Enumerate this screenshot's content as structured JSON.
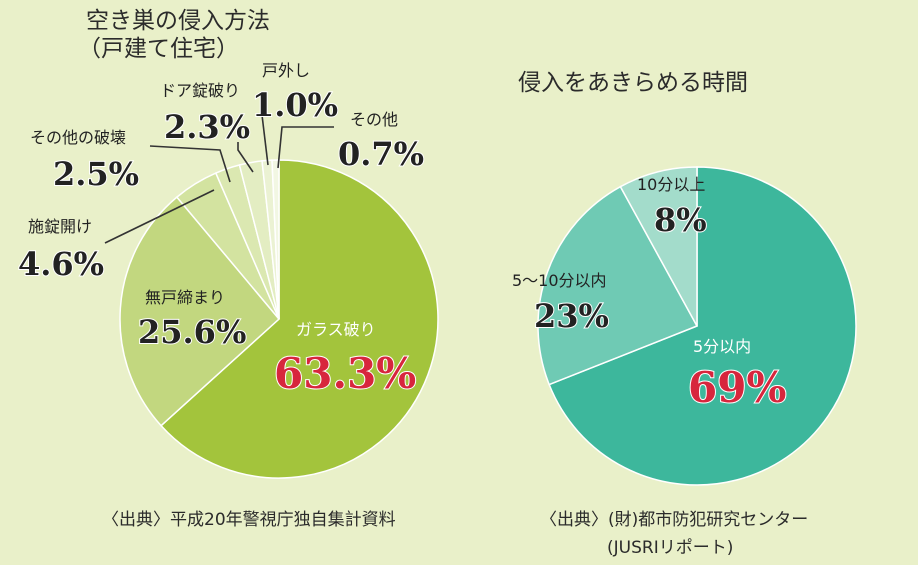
{
  "chart_data": [
    {
      "type": "pie",
      "title": "空き巣の侵入方法",
      "subtitle": "（戸建て住宅）",
      "source": "〈出典〉平成20年警視庁独自集計資料",
      "slices": [
        {
          "label": "ガラス破り",
          "value": 63.3,
          "display": "63.3%",
          "color": "#a3c43c",
          "value_color": "#d7263d"
        },
        {
          "label": "無戸締まり",
          "value": 25.6,
          "display": "25.6%",
          "color": "#c2d77f",
          "value_color": "#222222"
        },
        {
          "label": "施錠開け",
          "value": 4.6,
          "display": "4.6%",
          "color": "#d3e3a0",
          "value_color": "#222222"
        },
        {
          "label": "その他の破壊",
          "value": 2.5,
          "display": "2.5%",
          "color": "#dbe8b1",
          "value_color": "#222222"
        },
        {
          "label": "ドア錠破り",
          "value": 2.3,
          "display": "2.3%",
          "color": "#e3edc2",
          "value_color": "#222222"
        },
        {
          "label": "戸外し",
          "value": 1.0,
          "display": "1.0%",
          "color": "#ebf2d3",
          "value_color": "#222222"
        },
        {
          "label": "その他",
          "value": 0.7,
          "display": "0.7%",
          "color": "#f2f7e3",
          "value_color": "#222222"
        }
      ]
    },
    {
      "type": "pie",
      "title": "侵入をあきらめる時間",
      "source": "〈出典〉(財)都市防犯研究センター",
      "source2": "(JUSRIリポート)",
      "slices": [
        {
          "label": "5分以内",
          "value": 69,
          "display": "69%",
          "color": "#3db79c",
          "value_color": "#d7263d"
        },
        {
          "label": "5〜10分以内",
          "value": 23,
          "display": "23%",
          "color": "#6fcab4",
          "value_color": "#222222"
        },
        {
          "label": "10分以上",
          "value": 8,
          "display": "8%",
          "color": "#a3dccb",
          "value_color": "#222222"
        }
      ]
    }
  ]
}
